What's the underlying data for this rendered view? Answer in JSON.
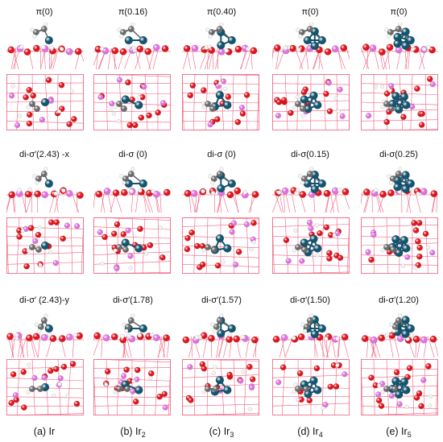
{
  "rows": [
    {
      "labels": [
        "π(0)",
        "π(0.16)",
        "π(0.40)",
        "π(0)",
        "π(0)"
      ]
    },
    {
      "labels": [
        "di-σ′(2.43) -x",
        "di-σ (0)",
        "di-σ (0)",
        "di-σ(0.15)",
        "di-σ(0.25)"
      ]
    },
    {
      "labels": [
        "di-σ′ (2.43)-y",
        "di-σ′(1.78)",
        "di-σ′(1.57)",
        "di-σ′(1.50)",
        "di-σ′(1.20)"
      ]
    }
  ],
  "columns": [
    {
      "caption_prefix": "(a) Ir",
      "caption_sub": ""
    },
    {
      "caption_prefix": "(b) Ir",
      "caption_sub": "2"
    },
    {
      "caption_prefix": "(c) Ir",
      "caption_sub": "3"
    },
    {
      "caption_prefix": "(d) Ir",
      "caption_sub": "4"
    },
    {
      "caption_prefix": "(e) Ir",
      "caption_sub": "5"
    }
  ],
  "colors": {
    "oxygen": "#e0141c",
    "indium": "#e070e0",
    "iridium": "#13546e",
    "carbon": "#6b6b6b",
    "hydrogen": "#f2f2f2",
    "lattice": "#f06080"
  }
}
